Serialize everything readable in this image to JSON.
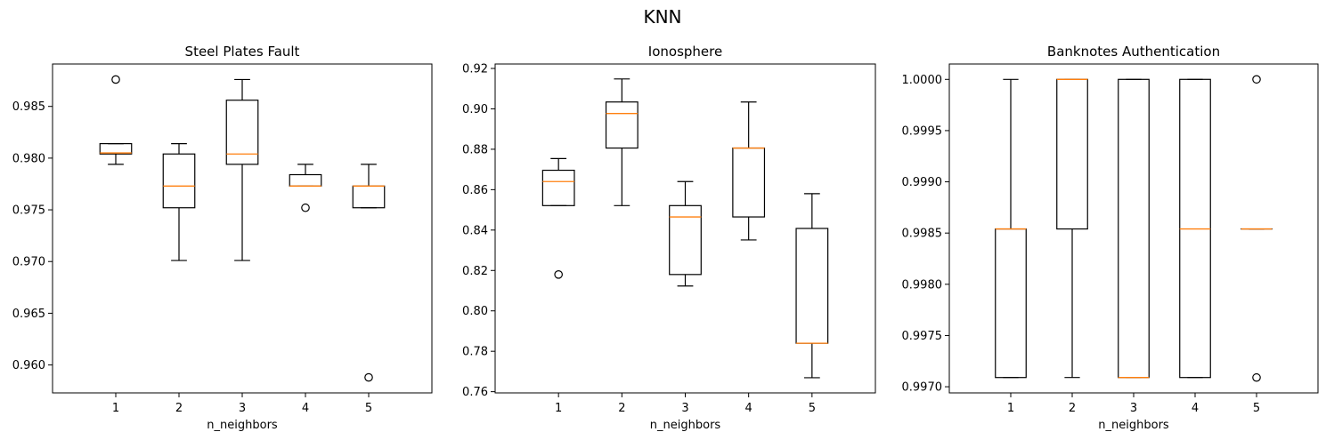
{
  "figure": {
    "suptitle": "KNN"
  },
  "chart_data": [
    {
      "type": "box",
      "title": "Steel Plates Fault",
      "xlabel": "n_neighbors",
      "ylabel": "",
      "categories": [
        "1",
        "2",
        "3",
        "4",
        "5"
      ],
      "ylim": [
        0.9573,
        0.9891
      ],
      "yticks": [
        0.96,
        0.965,
        0.97,
        0.975,
        0.98,
        0.985
      ],
      "ytick_labels": [
        "0.960",
        "0.965",
        "0.970",
        "0.975",
        "0.980",
        "0.985"
      ],
      "boxes": [
        {
          "whislo": 0.9794,
          "q1": 0.9804,
          "med": 0.9805,
          "q3": 0.9814,
          "whishi": 0.9814,
          "fliers": [
            0.9876
          ]
        },
        {
          "whislo": 0.9701,
          "q1": 0.9752,
          "med": 0.9773,
          "q3": 0.9804,
          "whishi": 0.9814,
          "fliers": []
        },
        {
          "whislo": 0.9701,
          "q1": 0.9794,
          "med": 0.9804,
          "q3": 0.9856,
          "whishi": 0.9876,
          "fliers": []
        },
        {
          "whislo": 0.9773,
          "q1": 0.9773,
          "med": 0.9773,
          "q3": 0.9784,
          "whishi": 0.9794,
          "fliers": [
            0.9752
          ]
        },
        {
          "whislo": 0.9752,
          "q1": 0.9752,
          "med": 0.9773,
          "q3": 0.9773,
          "whishi": 0.9794,
          "fliers": [
            0.9588
          ]
        }
      ]
    },
    {
      "type": "box",
      "title": "Ionosphere",
      "xlabel": "n_neighbors",
      "ylabel": "",
      "categories": [
        "1",
        "2",
        "3",
        "4",
        "5"
      ],
      "ylim": [
        0.7594,
        0.9222
      ],
      "yticks": [
        0.76,
        0.78,
        0.8,
        0.82,
        0.84,
        0.86,
        0.88,
        0.9,
        0.92
      ],
      "ytick_labels": [
        "0.76",
        "0.78",
        "0.80",
        "0.82",
        "0.84",
        "0.86",
        "0.88",
        "0.90",
        "0.92"
      ],
      "boxes": [
        {
          "whislo": 0.8521,
          "q1": 0.8521,
          "med": 0.864,
          "q3": 0.8696,
          "whishi": 0.8754,
          "fliers": [
            0.818
          ]
        },
        {
          "whislo": 0.8521,
          "q1": 0.8806,
          "med": 0.8977,
          "q3": 0.9034,
          "whishi": 0.9148,
          "fliers": []
        },
        {
          "whislo": 0.8123,
          "q1": 0.818,
          "med": 0.8465,
          "q3": 0.8521,
          "whishi": 0.864,
          "fliers": []
        },
        {
          "whislo": 0.8351,
          "q1": 0.8465,
          "med": 0.8806,
          "q3": 0.8806,
          "whishi": 0.9034,
          "fliers": []
        },
        {
          "whislo": 0.7669,
          "q1": 0.784,
          "med": 0.784,
          "q3": 0.8408,
          "whishi": 0.858,
          "fliers": []
        }
      ]
    },
    {
      "type": "box",
      "title": "Banknotes Authentication",
      "xlabel": "n_neighbors",
      "ylabel": "",
      "categories": [
        "1",
        "2",
        "3",
        "4",
        "5"
      ],
      "ylim": [
        0.99694,
        1.00015
      ],
      "yticks": [
        0.997,
        0.9975,
        0.998,
        0.9985,
        0.999,
        0.9995,
        1.0
      ],
      "ytick_labels": [
        "0.9970",
        "0.9975",
        "0.9980",
        "0.9985",
        "0.9990",
        "0.9995",
        "1.0000"
      ],
      "boxes": [
        {
          "whislo": 0.99709,
          "q1": 0.99709,
          "med": 0.99854,
          "q3": 0.99854,
          "whishi": 1.0,
          "fliers": []
        },
        {
          "whislo": 0.99709,
          "q1": 0.99854,
          "med": 1.0,
          "q3": 1.0,
          "whishi": 1.0,
          "fliers": []
        },
        {
          "whislo": 0.99709,
          "q1": 0.99709,
          "med": 0.99709,
          "q3": 1.0,
          "whishi": 1.0,
          "fliers": []
        },
        {
          "whislo": 0.99709,
          "q1": 0.99709,
          "med": 0.99854,
          "q3": 1.0,
          "whishi": 1.0,
          "fliers": []
        },
        {
          "whislo": 0.99854,
          "q1": 0.99854,
          "med": 0.99854,
          "q3": 0.99854,
          "whishi": 0.99854,
          "fliers": [
            1.0,
            0.99709
          ]
        }
      ]
    }
  ],
  "colors": {
    "box": "#000000",
    "median": "#ff7f0e",
    "background": "#ffffff"
  }
}
